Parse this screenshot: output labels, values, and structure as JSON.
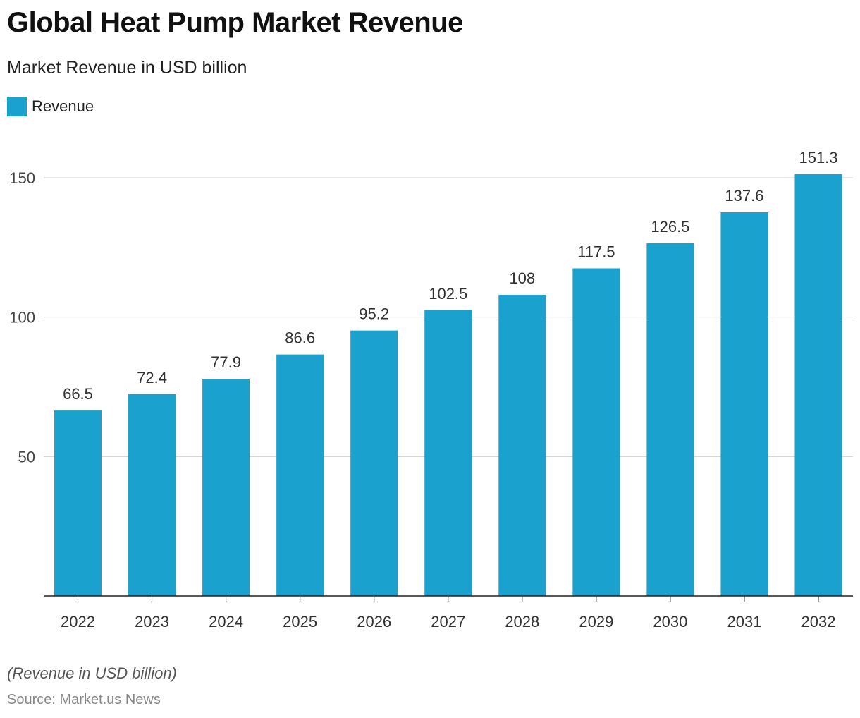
{
  "title": "Global Heat Pump Market Revenue",
  "subtitle": "Market Revenue in USD billion",
  "note": "(Revenue in USD billion)",
  "source": "Source: Market.us News",
  "colors": {
    "bar": "#1aa1cd",
    "grid": "#d0d0d0",
    "axis": "#222222"
  },
  "chart_data": {
    "type": "bar",
    "categories": [
      "2022",
      "2023",
      "2024",
      "2025",
      "2026",
      "2027",
      "2028",
      "2029",
      "2030",
      "2031",
      "2032"
    ],
    "series": [
      {
        "name": "Revenue",
        "values": [
          66.5,
          72.4,
          77.9,
          86.6,
          95.2,
          102.5,
          108,
          117.5,
          126.5,
          137.6,
          151.3
        ]
      }
    ],
    "data_labels": [
      "66.5",
      "72.4",
      "77.9",
      "86.6",
      "95.2",
      "102.5",
      "108",
      "117.5",
      "126.5",
      "137.6",
      "151.3"
    ],
    "yticks": [
      50,
      100,
      150
    ],
    "ylim": [
      0,
      150
    ],
    "grid": true,
    "legend": "top-left"
  }
}
